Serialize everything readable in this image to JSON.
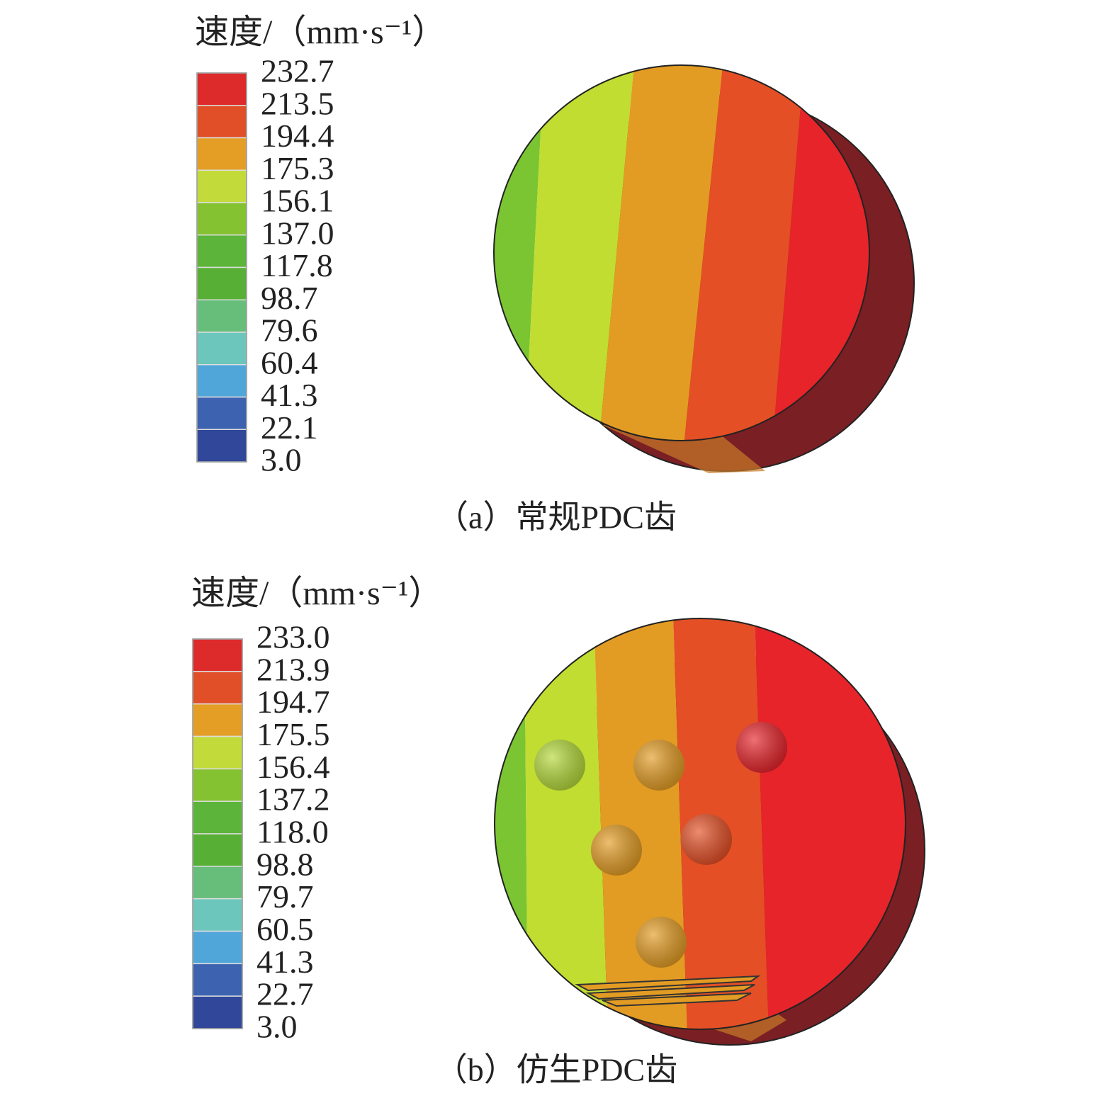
{
  "panels": [
    {
      "legend": {
        "title": "速度/（mm·s⁻¹）",
        "labels": [
          "232.7",
          "213.5",
          "194.4",
          "175.3",
          "156.1",
          "137.0",
          "117.8",
          "98.7",
          "79.6",
          "60.4",
          "41.3",
          "22.1",
          "3.0"
        ]
      },
      "caption": "（a）常规PDC齿"
    },
    {
      "legend": {
        "title": "速度/（mm·s⁻¹）",
        "labels": [
          "233.0",
          "213.9",
          "194.7",
          "175.5",
          "156.4",
          "137.2",
          "118.0",
          "98.8",
          "79.7",
          "60.5",
          "41.3",
          "22.7",
          "3.0"
        ]
      },
      "caption": "（b）仿生PDC齿"
    }
  ]
}
